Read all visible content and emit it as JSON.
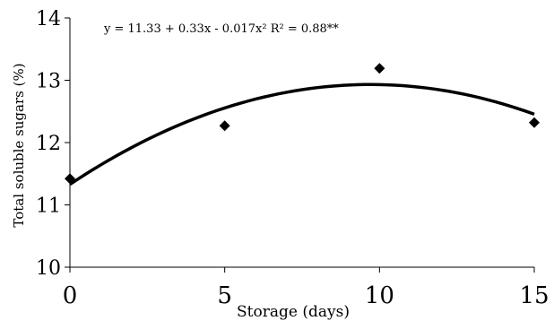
{
  "chart_data": {
    "type": "scatter",
    "title": "",
    "xlabel": "Storage (days)",
    "ylabel": "Total soluble sugars (%)",
    "xlim": [
      0,
      15
    ],
    "ylim": [
      10,
      14
    ],
    "x_ticks": [
      "0",
      "5",
      "10",
      "15"
    ],
    "y_ticks": [
      "10",
      "11",
      "12",
      "13",
      "14"
    ],
    "grid": false,
    "series": [
      {
        "points": [
          {
            "x": 0,
            "y": 11.42
          },
          {
            "x": 5,
            "y": 12.27
          },
          {
            "x": 10,
            "y": 13.19
          },
          {
            "x": 15,
            "y": 12.32
          }
        ],
        "marker": "diamond",
        "color": "#000000"
      }
    ],
    "trendline": {
      "type": "polynomial",
      "coefficients": [
        11.33,
        0.33,
        -0.017
      ],
      "color": "#000000"
    },
    "annotation": "y = 11.33 + 0.33x - 0.017x²   R² = 0.88**"
  }
}
